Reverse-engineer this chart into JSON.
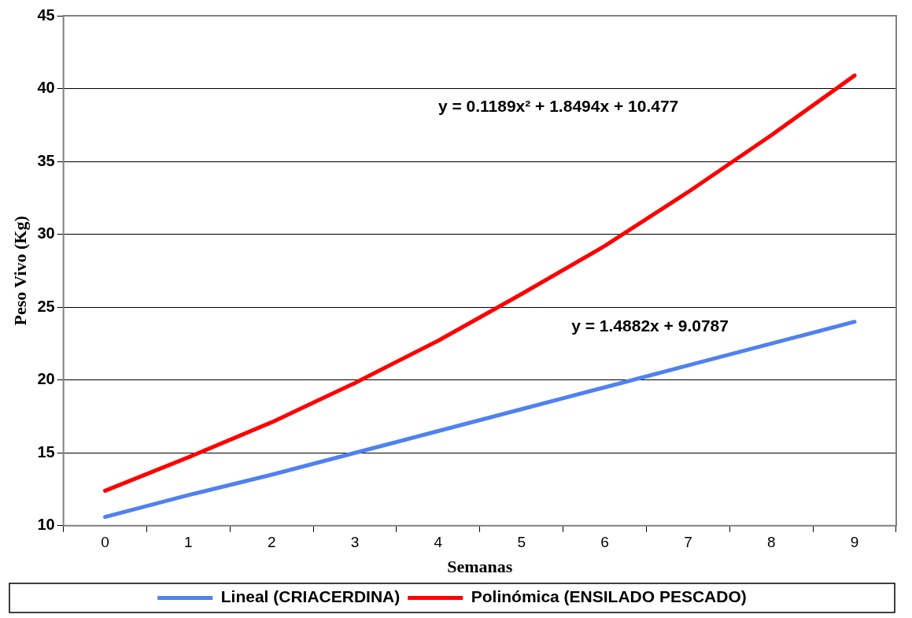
{
  "chart_data": {
    "type": "line",
    "xlabel": "Semanas",
    "ylabel": "Peso Vivo (Kg)",
    "categories": [
      "0",
      "1",
      "2",
      "3",
      "4",
      "5",
      "6",
      "7",
      "8",
      "9"
    ],
    "series": [
      {
        "name": "Lineal (CRIACERDINA)",
        "color": "#4f81f0",
        "values": [
          10.6,
          12.1,
          13.5,
          15.0,
          16.5,
          18.0,
          19.5,
          21.0,
          22.5,
          24.0
        ]
      },
      {
        "name": "Polinómica (ENSILADO PESCADO)",
        "color": "#ff0000",
        "values": [
          12.4,
          14.7,
          17.1,
          19.8,
          22.7,
          25.9,
          29.2,
          32.9,
          36.8,
          40.9
        ]
      }
    ],
    "ylim": [
      10,
      45
    ],
    "yticks": [
      10,
      15,
      20,
      25,
      30,
      35,
      40,
      45
    ],
    "grid": "y",
    "legend": "bottom",
    "marker": "none",
    "line_style": "solid",
    "annotations": [
      "y = 0.1189x² + 1.8494x + 10.477",
      "y = 1.4882x + 9.0787"
    ]
  }
}
